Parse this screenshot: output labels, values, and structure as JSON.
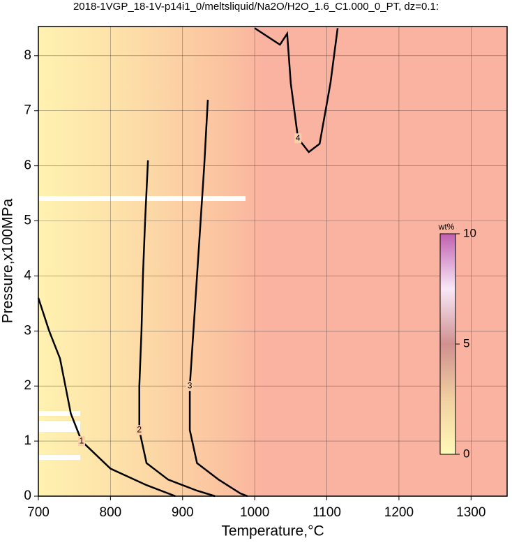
{
  "chart_data": {
    "type": "contour",
    "title": "2018-1VGP_18-1V-p14i1_0/meltsliquid/Na2O/H2O_1.6_C1.000_0_PT, dz=0.1:",
    "x_label": "Temperature,°C",
    "y_label": "Pressure,x100MPa",
    "xlim": [
      700,
      1350
    ],
    "ylim": [
      0,
      8.53
    ],
    "xticks": [
      700,
      800,
      900,
      1000,
      1100,
      1200,
      1300
    ],
    "yticks": [
      0,
      1,
      2,
      3,
      4,
      5,
      6,
      7,
      8
    ],
    "grid": true,
    "contours": [
      {
        "level": 1,
        "color": "#000000",
        "x": [
          700,
          715,
          730,
          745,
          760,
          800,
          850,
          890
        ],
        "y": [
          3.6,
          3.0,
          2.5,
          1.5,
          1.0,
          0.5,
          0.2,
          0
        ]
      },
      {
        "level": 2,
        "color": "#000000",
        "x": [
          852,
          848,
          845,
          843,
          840,
          840,
          850,
          880,
          920,
          945
        ],
        "y": [
          6.1,
          5,
          4,
          3,
          2,
          1.2,
          0.6,
          0.3,
          0.1,
          0
        ]
      },
      {
        "level": 3,
        "color": "#000000",
        "x": [
          935,
          930,
          925,
          920,
          915,
          910,
          910,
          920,
          950,
          980,
          990
        ],
        "y": [
          7.2,
          6,
          5,
          4,
          3,
          2,
          1.2,
          0.6,
          0.3,
          0.05,
          0
        ]
      },
      {
        "level": 4,
        "color": "#000000",
        "x": [
          1000,
          1035,
          1045,
          1050,
          1060,
          1075,
          1090,
          1105,
          1115
        ],
        "y": [
          8.5,
          8.2,
          8.4,
          7.5,
          6.5,
          6.25,
          6.4,
          7.5,
          8.5
        ]
      }
    ],
    "colorbar": {
      "label": "wt%",
      "lim": [
        0,
        10
      ],
      "ticks": [
        0,
        5,
        10
      ],
      "colors": [
        "#fff9b8",
        "#f0d0a0",
        "#d09090",
        "#f8e8f8",
        "#c060b0"
      ]
    }
  }
}
